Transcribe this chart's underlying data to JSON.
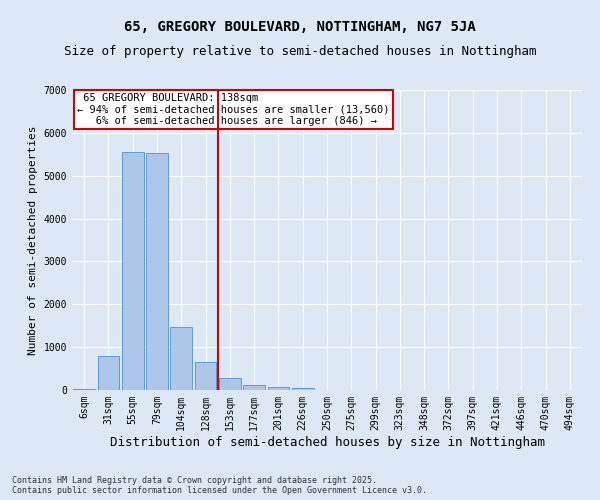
{
  "title": "65, GREGORY BOULEVARD, NOTTINGHAM, NG7 5JA",
  "subtitle": "Size of property relative to semi-detached houses in Nottingham",
  "xlabel": "Distribution of semi-detached houses by size in Nottingham",
  "ylabel": "Number of semi-detached properties",
  "categories": [
    "6sqm",
    "31sqm",
    "55sqm",
    "79sqm",
    "104sqm",
    "128sqm",
    "153sqm",
    "177sqm",
    "201sqm",
    "226sqm",
    "250sqm",
    "275sqm",
    "299sqm",
    "323sqm",
    "348sqm",
    "372sqm",
    "397sqm",
    "421sqm",
    "446sqm",
    "470sqm",
    "494sqm"
  ],
  "values": [
    30,
    800,
    5560,
    5540,
    1470,
    660,
    270,
    120,
    60,
    50,
    0,
    0,
    0,
    0,
    0,
    0,
    0,
    0,
    0,
    0,
    0
  ],
  "bar_color": "#aec6e8",
  "bar_edge_color": "#5b9bd5",
  "vline_x": 5.5,
  "pct_smaller": "94%",
  "count_smaller": "13,560",
  "pct_larger": "6%",
  "count_larger": "846",
  "annotation_box_facecolor": "#ffffff",
  "annotation_box_edgecolor": "#cc0000",
  "vline_color": "#cc0000",
  "ylim": [
    0,
    7000
  ],
  "yticks": [
    0,
    1000,
    2000,
    3000,
    4000,
    5000,
    6000,
    7000
  ],
  "background_color": "#dce8f5",
  "grid_color": "#ffffff",
  "footnote": "Contains HM Land Registry data © Crown copyright and database right 2025.\nContains public sector information licensed under the Open Government Licence v3.0.",
  "title_fontsize": 10,
  "subtitle_fontsize": 9,
  "xlabel_fontsize": 9,
  "ylabel_fontsize": 8,
  "tick_fontsize": 7,
  "annotation_fontsize": 7.5,
  "footnote_fontsize": 6
}
